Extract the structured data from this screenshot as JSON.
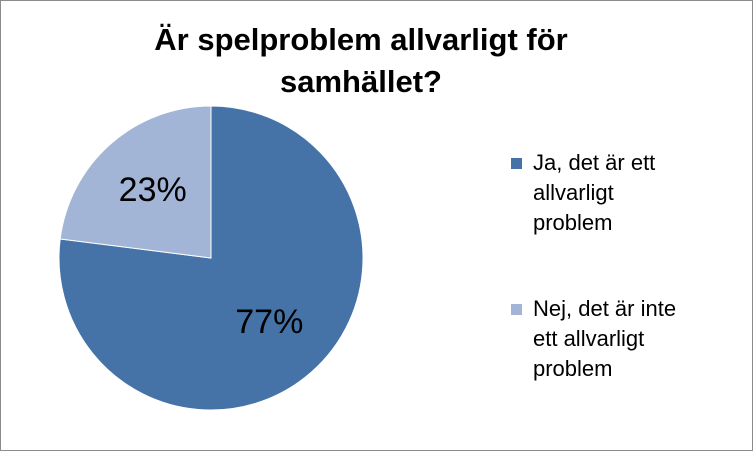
{
  "chart_data": {
    "type": "pie",
    "title": "Är spelproblem allvarligt för samhället?",
    "title_lines": [
      "Är spelproblem allvarligt för",
      "samhället?"
    ],
    "categories": [
      "Ja, det är ett allvarligt problem",
      "Nej, det är inte ett allvarligt problem"
    ],
    "values": [
      77,
      23
    ],
    "data_labels": [
      "77%",
      "23%"
    ],
    "colors": [
      "#4573a7",
      "#a2b5d6"
    ],
    "legend_position": "right",
    "legend": [
      {
        "lines": [
          "Ja, det är ett",
          "allvarligt",
          "problem"
        ],
        "color": "#4573a7"
      },
      {
        "lines": [
          "Nej, det är inte",
          "ett allvarligt",
          "problem"
        ],
        "color": "#a2b5d6"
      }
    ]
  }
}
